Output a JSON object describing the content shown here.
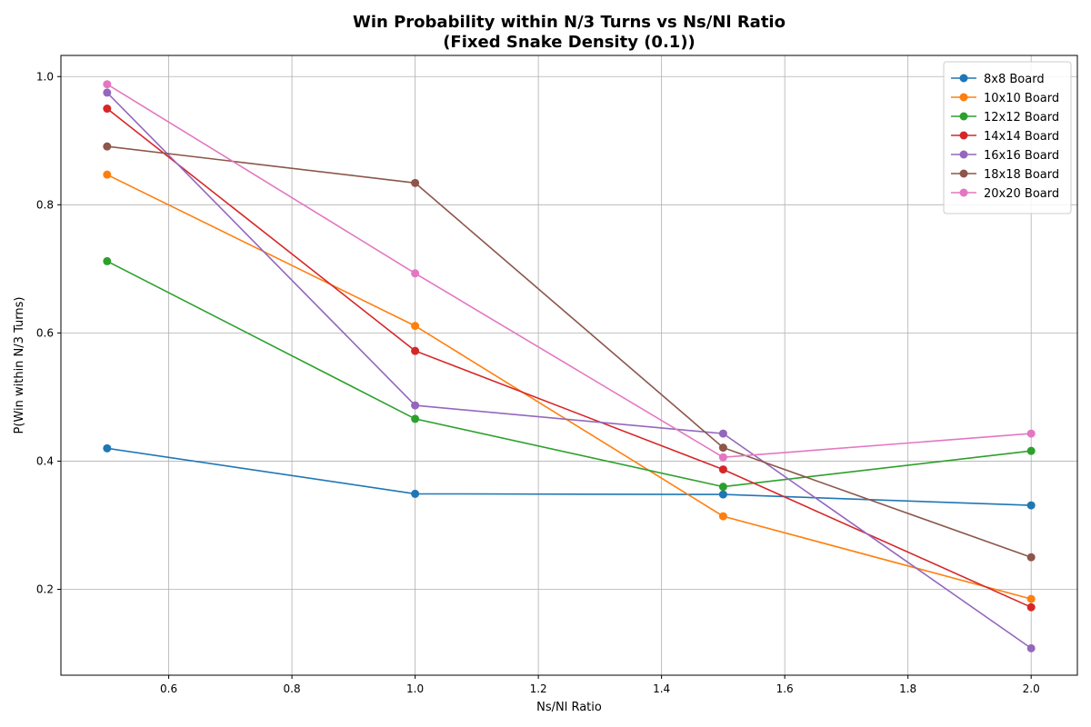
{
  "chart_data": {
    "type": "line",
    "title": "Win Probability within N/3 Turns vs Ns/Nl Ratio",
    "subtitle": "(Fixed Snake Density (0.1))",
    "xlabel": "Ns/Nl Ratio",
    "ylabel": "P(Win within N/3 Turns)",
    "xlim": [
      0.425,
      2.075
    ],
    "ylim": [
      0.066,
      1.033
    ],
    "xticks": [
      0.6,
      0.8,
      1.0,
      1.2,
      1.4,
      1.6,
      1.8,
      2.0
    ],
    "xtick_labels": [
      "0.6",
      "0.8",
      "1.0",
      "1.2",
      "1.4",
      "1.6",
      "1.8",
      "2.0"
    ],
    "yticks": [
      0.2,
      0.4,
      0.6,
      0.8,
      1.0
    ],
    "ytick_labels": [
      "0.2",
      "0.4",
      "0.6",
      "0.8",
      "1.0"
    ],
    "grid": true,
    "legend_position": "top-right",
    "x": [
      0.5,
      1.0,
      1.5,
      2.0
    ],
    "series": [
      {
        "name": "8x8 Board",
        "color": "#1f77b4",
        "values": [
          0.42,
          0.349,
          0.348,
          0.331
        ]
      },
      {
        "name": "10x10 Board",
        "color": "#ff7f0e",
        "values": [
          0.847,
          0.611,
          0.314,
          0.185
        ]
      },
      {
        "name": "12x12 Board",
        "color": "#2ca02c",
        "values": [
          0.712,
          0.466,
          0.36,
          0.416
        ]
      },
      {
        "name": "14x14 Board",
        "color": "#d62728",
        "values": [
          0.95,
          0.572,
          0.387,
          0.172
        ]
      },
      {
        "name": "16x16 Board",
        "color": "#9467bd",
        "values": [
          0.975,
          0.487,
          0.443,
          0.108
        ]
      },
      {
        "name": "18x18 Board",
        "color": "#8c564b",
        "values": [
          0.891,
          0.834,
          0.421,
          0.25
        ]
      },
      {
        "name": "20x20 Board",
        "color": "#e377c2",
        "values": [
          0.988,
          0.693,
          0.406,
          0.443
        ]
      }
    ]
  }
}
